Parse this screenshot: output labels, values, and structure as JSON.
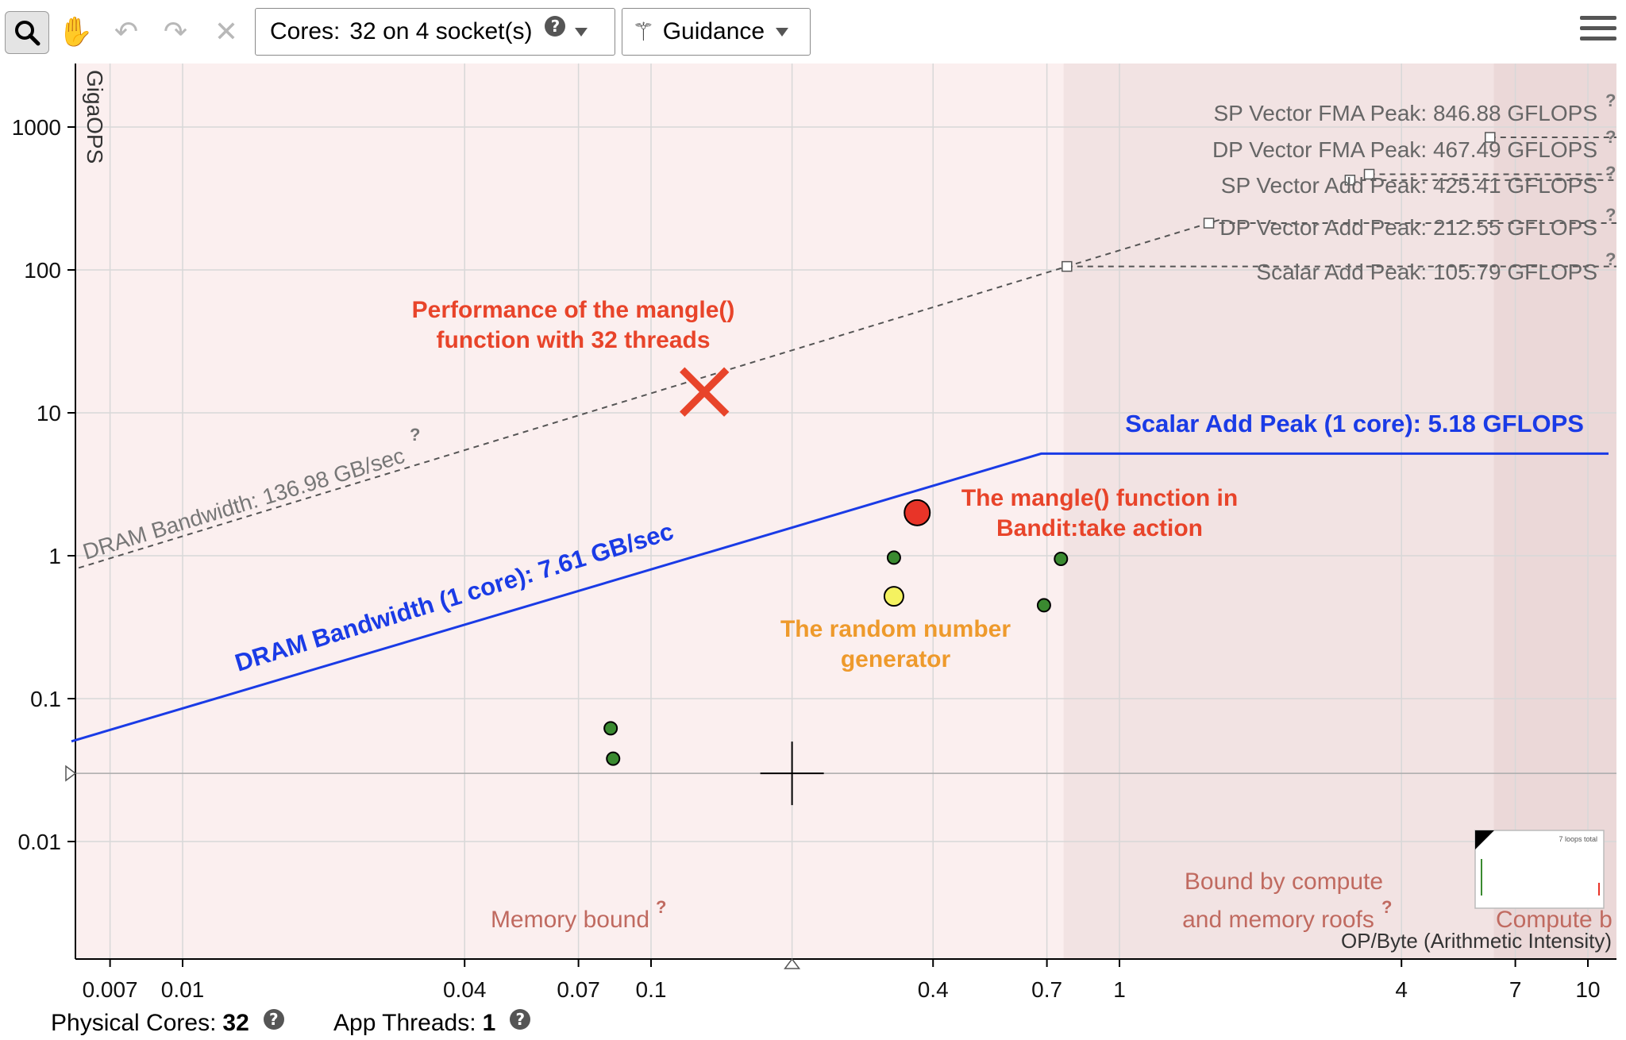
{
  "toolbar": {
    "search_icon": "magnifier-icon",
    "icons": [
      "hand-icon",
      "undo-icon",
      "redo-icon",
      "close-icon"
    ],
    "cores_label": "Cores:",
    "cores_value": "32 on 4 socket(s)",
    "guidance_label": "Guidance",
    "menu_icon": "hamburger-icon"
  },
  "status": {
    "physical_cores_label": "Physical Cores:",
    "physical_cores_value": "32",
    "app_threads_label": "App Threads:",
    "app_threads_value": "1"
  },
  "colors": {
    "blue": "#1a3be6",
    "red_annotation": "#e8442a",
    "orange_annotation": "#ee9a2c",
    "region_label": "#c06a60",
    "region_fill": "#fbefef",
    "region_fill_dark": "#f1e1e1"
  },
  "chart_data": {
    "type": "scatter",
    "ylabel": "GigaOPS",
    "xlabel": "OP/Byte (Arithmetic Intensity)",
    "xscale": "log",
    "yscale": "log",
    "xlim": [
      0.005,
      12
    ],
    "ylim": [
      0.001,
      2500
    ],
    "x_ticks": [
      "0.007",
      "0.01",
      "0.04",
      "0.07",
      "0.1",
      "0.4",
      "0.7",
      "1",
      "4",
      "7",
      "10"
    ],
    "y_ticks": [
      "1000",
      "100",
      "10",
      "1",
      "0.1",
      "0.01"
    ],
    "roofs": [
      {
        "label": "DRAM Bandwidth: 136.98 GB/sec",
        "style": "dashed",
        "kind": "bandwidth",
        "gbps": 136.98
      },
      {
        "label": "SP Vector FMA Peak: 846.88 GFLOPS",
        "style": "dashed",
        "kind": "compute",
        "gflops": 846.88
      },
      {
        "label": "DP Vector FMA Peak: 467.49 GFLOPS",
        "style": "dashed",
        "kind": "compute",
        "gflops": 467.49
      },
      {
        "label": "SP Vector Add Peak: 425.41 GFLOPS",
        "style": "dashed",
        "kind": "compute",
        "gflops": 425.41
      },
      {
        "label": "DP Vector Add Peak: 212.55 GFLOPS",
        "style": "dashed",
        "kind": "compute",
        "gflops": 212.55
      },
      {
        "label": "Scalar Add Peak: 105.79 GFLOPS",
        "style": "dashed",
        "kind": "compute",
        "gflops": 105.79
      },
      {
        "label": "DRAM Bandwidth (1 core): 7.61 GB/sec",
        "style": "solid",
        "kind": "bandwidth",
        "gbps": 7.61
      },
      {
        "label": "Scalar Add Peak (1 core): 5.18 GFLOPS",
        "style": "solid",
        "kind": "compute",
        "gflops": 5.18
      }
    ],
    "points": [
      {
        "x": 0.082,
        "y": 0.062,
        "color": "green",
        "size": "small"
      },
      {
        "x": 0.083,
        "y": 0.038,
        "color": "green",
        "size": "small"
      },
      {
        "x": 0.33,
        "y": 0.97,
        "color": "green",
        "size": "small"
      },
      {
        "x": 0.69,
        "y": 0.45,
        "color": "green",
        "size": "small"
      },
      {
        "x": 0.75,
        "y": 0.95,
        "color": "green",
        "size": "small"
      },
      {
        "x": 0.33,
        "y": 0.52,
        "color": "yellow",
        "size": "medium"
      },
      {
        "x": 0.37,
        "y": 2.0,
        "color": "red",
        "size": "large"
      },
      {
        "x": 0.13,
        "y": 14,
        "marker": "x",
        "color": "red"
      }
    ],
    "annotations": [
      {
        "lines": [
          "Performance of the mangle()",
          "function with 32 threads"
        ],
        "color": "red"
      },
      {
        "lines": [
          "The mangle() function in",
          "Bandit:take action"
        ],
        "color": "red"
      },
      {
        "lines": [
          "The random number",
          "generator"
        ],
        "color": "orange"
      }
    ],
    "region_labels": [
      "Memory bound",
      "Bound by compute",
      "and memory roofs",
      "Compute b"
    ],
    "crosshair": {
      "x": 0.2,
      "y": 0.03
    },
    "minimap_label": "7 loops total"
  }
}
